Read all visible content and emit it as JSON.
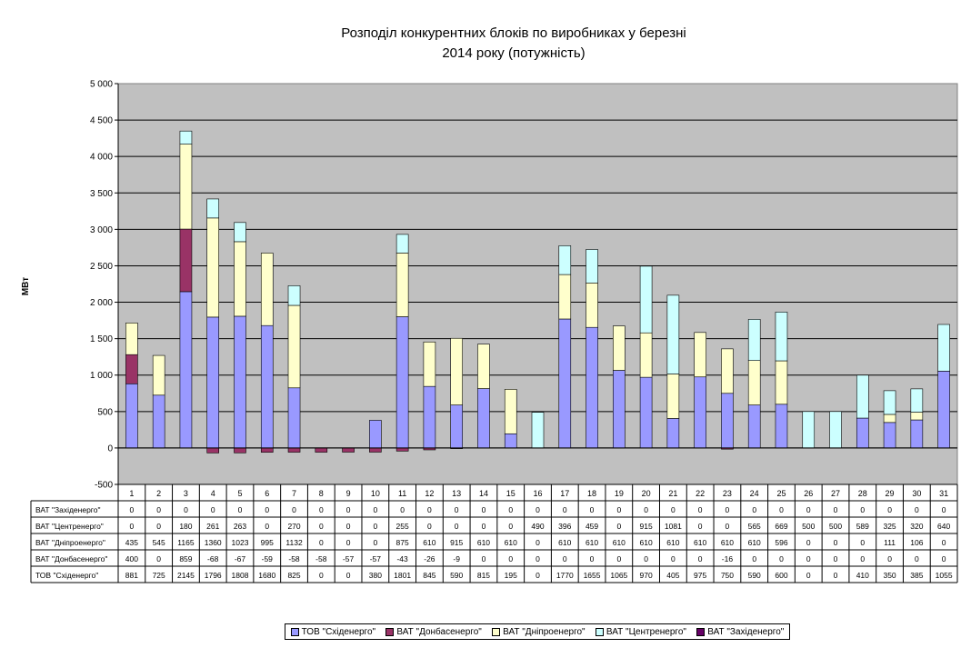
{
  "chart_data": {
    "type": "bar",
    "stacked": true,
    "title_lines": [
      "Розподіл конкурентних блоків по виробниках у березні",
      "2014 року (потужність)"
    ],
    "ylabel": "МВт",
    "xlabel": "",
    "ylim": [
      -500,
      5000
    ],
    "yticks": [
      -500,
      0,
      500,
      1000,
      1500,
      2000,
      2500,
      3000,
      3500,
      4000,
      4500,
      5000
    ],
    "ytick_labels": [
      "-500",
      "0",
      "500",
      "1 000",
      "1 500",
      "2 000",
      "2 500",
      "3 000",
      "3 500",
      "4 000",
      "4 500",
      "5 000"
    ],
    "grid": true,
    "legend_position": "bottom",
    "plot_background": "#c0c0c0",
    "categories": [
      "1",
      "2",
      "3",
      "4",
      "5",
      "6",
      "7",
      "8",
      "9",
      "10",
      "11",
      "12",
      "13",
      "14",
      "15",
      "16",
      "17",
      "18",
      "19",
      "20",
      "21",
      "22",
      "23",
      "24",
      "25",
      "26",
      "27",
      "28",
      "29",
      "30",
      "31"
    ],
    "series": [
      {
        "name": "ТОВ \"Східенерго\"",
        "color": "#9999ff",
        "values": [
          881,
          725,
          2145,
          1796,
          1808,
          1680,
          825,
          0,
          0,
          380,
          1801,
          845,
          590,
          815,
          195,
          0,
          1770,
          1655,
          1065,
          970,
          405,
          975,
          750,
          590,
          600,
          0,
          0,
          410,
          350,
          385,
          1055
        ]
      },
      {
        "name": "ВАТ \"Донбасенерго\"",
        "color": "#993366",
        "values": [
          400,
          0,
          859,
          -68,
          -67,
          -59,
          -58,
          -58,
          -57,
          -57,
          -43,
          -26,
          -9,
          0,
          0,
          0,
          0,
          0,
          0,
          0,
          0,
          0,
          -16,
          0,
          0,
          0,
          0,
          0,
          0,
          0,
          0
        ]
      },
      {
        "name": "ВАТ \"Дніпроенерго\"",
        "color": "#ffffcc",
        "values": [
          435,
          545,
          1165,
          1360,
          1023,
          995,
          1132,
          0,
          0,
          0,
          875,
          610,
          915,
          610,
          610,
          0,
          610,
          610,
          610,
          610,
          610,
          610,
          610,
          610,
          596,
          0,
          0,
          0,
          111,
          106,
          0
        ]
      },
      {
        "name": "ВАТ \"Центренерго\"",
        "color": "#ccffff",
        "values": [
          0,
          0,
          180,
          261,
          263,
          0,
          270,
          0,
          0,
          0,
          255,
          0,
          0,
          0,
          0,
          490,
          396,
          459,
          0,
          915,
          1081,
          0,
          0,
          565,
          669,
          500,
          500,
          589,
          325,
          320,
          640
        ]
      },
      {
        "name": "ВАТ \"Західенерго\"",
        "color": "#660066",
        "values": [
          0,
          0,
          0,
          0,
          0,
          0,
          0,
          0,
          0,
          0,
          0,
          0,
          0,
          0,
          0,
          0,
          0,
          0,
          0,
          0,
          0,
          0,
          0,
          0,
          0,
          0,
          0,
          0,
          0,
          0,
          0
        ]
      }
    ],
    "table_row_order": [
      4,
      3,
      2,
      1,
      0
    ]
  }
}
